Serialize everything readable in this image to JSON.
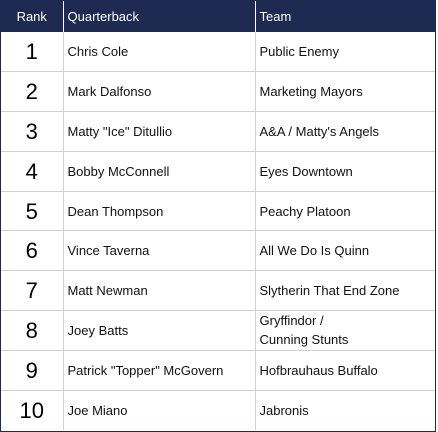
{
  "header": {
    "rank": "Rank",
    "quarterback": "Quarterback",
    "team": "Team"
  },
  "rows": [
    {
      "rank": "1",
      "quarterback": "Chris Cole",
      "team": [
        "Public Enemy"
      ]
    },
    {
      "rank": "2",
      "quarterback": "Mark Dalfonso",
      "team": [
        "Marketing Mayors"
      ]
    },
    {
      "rank": "3",
      "quarterback": "Matty \"Ice\" Ditullio",
      "team": [
        "A&A / Matty's Angels"
      ]
    },
    {
      "rank": "4",
      "quarterback": "Bobby McConnell",
      "team": [
        "Eyes Downtown"
      ]
    },
    {
      "rank": "5",
      "quarterback": "Dean Thompson",
      "team": [
        "Peachy Platoon"
      ]
    },
    {
      "rank": "6",
      "quarterback": "Vince Taverna",
      "team": [
        "All We Do Is Quinn"
      ]
    },
    {
      "rank": "7",
      "quarterback": "Matt Newman",
      "team": [
        "Slytherin That End Zone"
      ]
    },
    {
      "rank": "8",
      "quarterback": "Joey Batts",
      "team": [
        "Gryffindor /",
        "Cunning Stunts"
      ]
    },
    {
      "rank": "9",
      "quarterback": "Patrick \"Topper\" McGovern",
      "team": [
        "Hofbrauhaus Buffalo"
      ]
    },
    {
      "rank": "10",
      "quarterback": "Joe Miano",
      "team": [
        "Jabronis"
      ]
    }
  ],
  "colors": {
    "header_bg": "#1f2a52",
    "header_text": "#ffffff",
    "grid": "#d0d0d0"
  }
}
